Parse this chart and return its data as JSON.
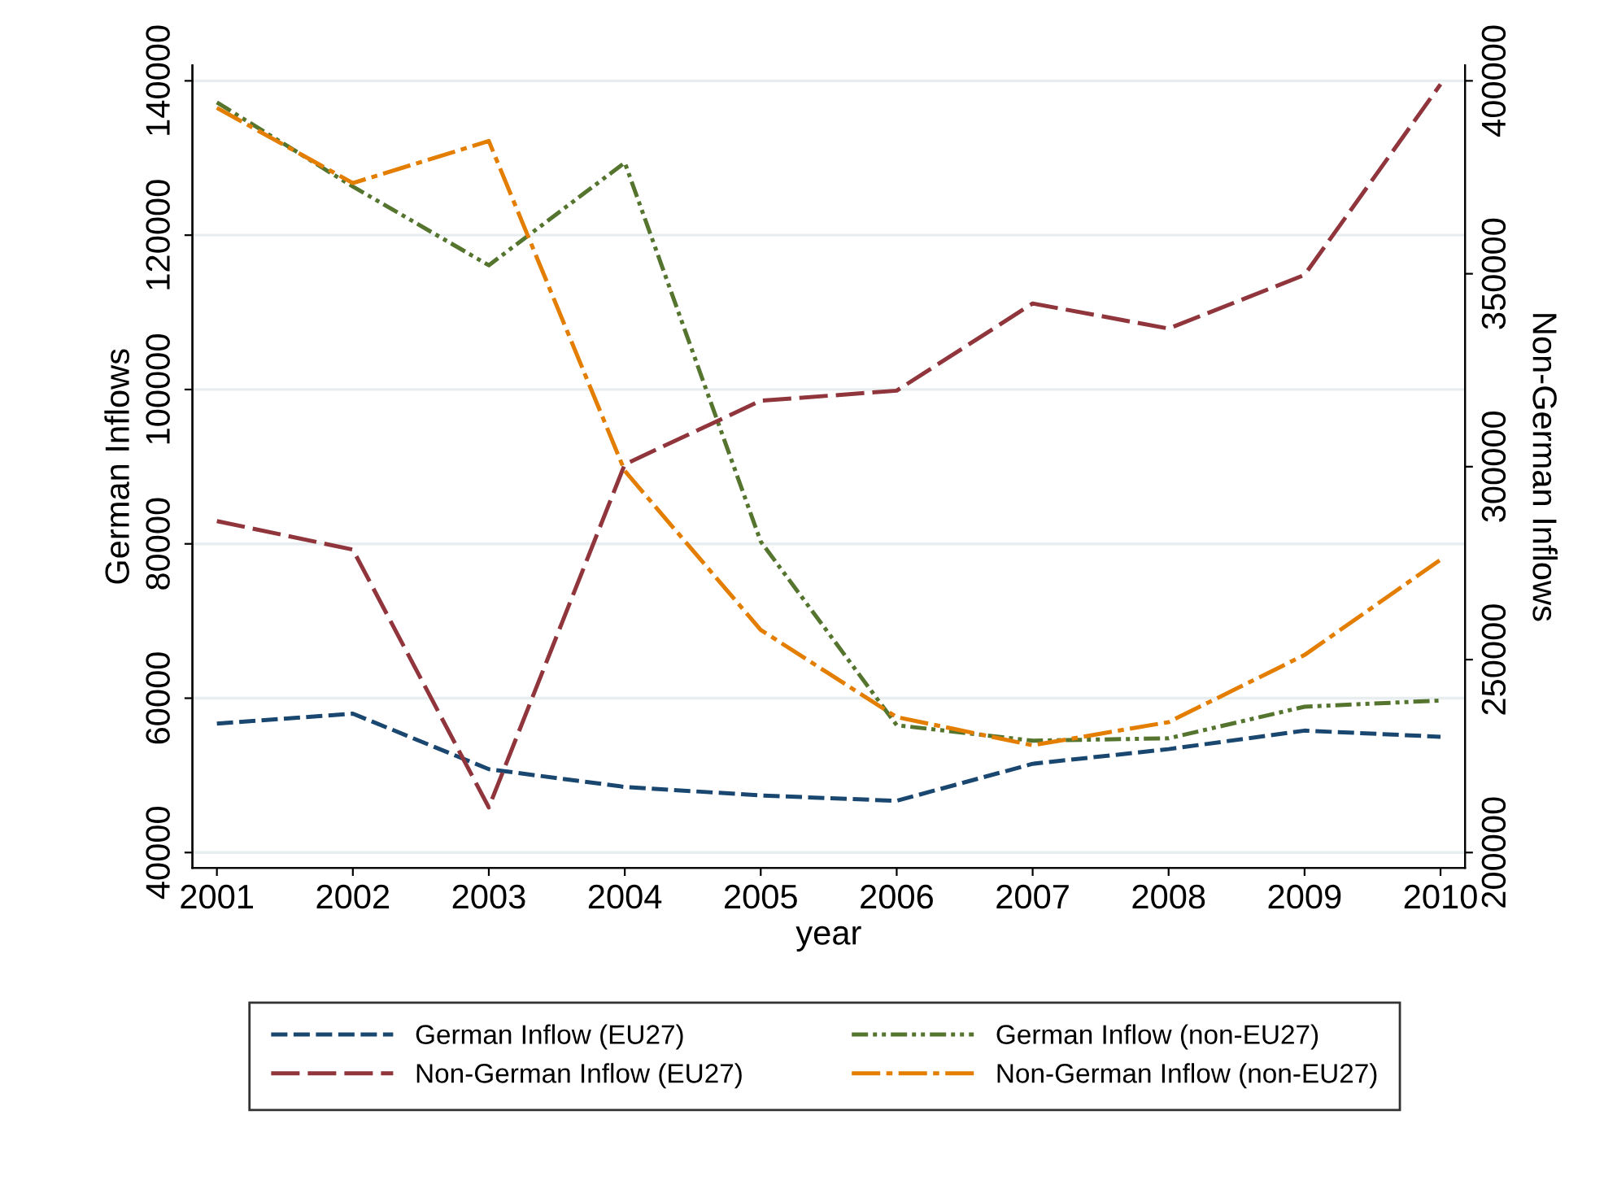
{
  "chart_data": {
    "type": "line",
    "xlabel": "year",
    "ylabel": "German Inflows",
    "y2label": "Non-German Inflows",
    "x": [
      2001,
      2002,
      2003,
      2004,
      2005,
      2006,
      2007,
      2008,
      2009,
      2010
    ],
    "xlim": [
      2000.82,
      2010.18
    ],
    "xticks": [
      2001,
      2002,
      2003,
      2004,
      2005,
      2006,
      2007,
      2008,
      2009,
      2010
    ],
    "ylim": [
      38000,
      142000
    ],
    "yticks": [
      40000,
      60000,
      80000,
      100000,
      120000,
      140000
    ],
    "y2lim": [
      196000,
      404000
    ],
    "y2ticks": [
      200000,
      250000,
      300000,
      350000,
      400000
    ],
    "grid": "y",
    "legend": "bottom",
    "line_style": "dashed",
    "marker": "none",
    "series": [
      {
        "name": "German Inflow (EU27)",
        "color": "#1a476f",
        "values": [
          56700,
          58000,
          50800,
          48500,
          47400,
          46700,
          51500,
          53400,
          55800,
          55000
        ]
      },
      {
        "name": "German Inflow (non-EU27)",
        "color": "#55752f",
        "values": [
          137200,
          126300,
          116100,
          129400,
          80300,
          56500,
          54500,
          54800,
          58900,
          59700
        ]
      },
      {
        "name": "Non-German Inflow (EU27)",
        "color": "#90353b",
        "axis": "y2",
        "values": [
          285900,
          278500,
          211700,
          300600,
          317100,
          319700,
          342300,
          335800,
          349700,
          399100
        ]
      },
      {
        "name": "Non-German Inflow (non-EU27)",
        "color": "#e37e00",
        "axis": "y2",
        "values": [
          393000,
          373500,
          384400,
          298900,
          257700,
          235100,
          227800,
          233800,
          251200,
          275900
        ]
      }
    ]
  }
}
